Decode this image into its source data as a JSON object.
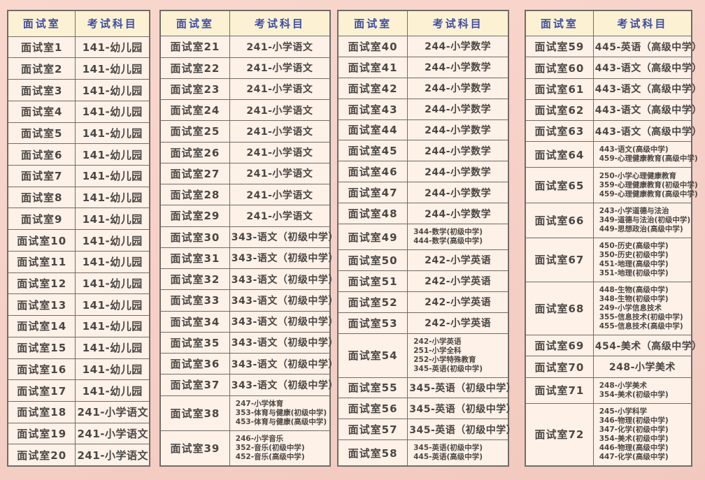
{
  "colors": {
    "page_bg_top": "#f9d7cd",
    "page_bg_bottom": "#f2c9bf",
    "table_bg": "#fdf1e8",
    "header_bg": "#fcf2d3",
    "header_text": "#3e4da3",
    "body_text": "#4b4744",
    "border": "#716c67"
  },
  "column_headers": {
    "room": "面试室",
    "subject": "考试科目"
  },
  "tables": [
    {
      "rows": [
        {
          "room": "面试室1",
          "subjects": [
            "141-幼儿园"
          ]
        },
        {
          "room": "面试室2",
          "subjects": [
            "141-幼儿园"
          ]
        },
        {
          "room": "面试室3",
          "subjects": [
            "141-幼儿园"
          ]
        },
        {
          "room": "面试室4",
          "subjects": [
            "141-幼儿园"
          ]
        },
        {
          "room": "面试室5",
          "subjects": [
            "141-幼儿园"
          ]
        },
        {
          "room": "面试室6",
          "subjects": [
            "141-幼儿园"
          ]
        },
        {
          "room": "面试室7",
          "subjects": [
            "141-幼儿园"
          ]
        },
        {
          "room": "面试室8",
          "subjects": [
            "141-幼儿园"
          ]
        },
        {
          "room": "面试室9",
          "subjects": [
            "141-幼儿园"
          ]
        },
        {
          "room": "面试室10",
          "subjects": [
            "141-幼儿园"
          ]
        },
        {
          "room": "面试室11",
          "subjects": [
            "141-幼儿园"
          ]
        },
        {
          "room": "面试室12",
          "subjects": [
            "141-幼儿园"
          ]
        },
        {
          "room": "面试室13",
          "subjects": [
            "141-幼儿园"
          ]
        },
        {
          "room": "面试室14",
          "subjects": [
            "141-幼儿园"
          ]
        },
        {
          "room": "面试室15",
          "subjects": [
            "141-幼儿园"
          ]
        },
        {
          "room": "面试室16",
          "subjects": [
            "141-幼儿园"
          ]
        },
        {
          "room": "面试室17",
          "subjects": [
            "141-幼儿园"
          ]
        },
        {
          "room": "面试室18",
          "subjects": [
            "241-小学语文"
          ]
        },
        {
          "room": "面试室19",
          "subjects": [
            "241-小学语文"
          ]
        },
        {
          "room": "面试室20",
          "subjects": [
            "241-小学语文"
          ]
        }
      ]
    },
    {
      "rows": [
        {
          "room": "面试室21",
          "subjects": [
            "241-小学语文"
          ]
        },
        {
          "room": "面试室22",
          "subjects": [
            "241-小学语文"
          ]
        },
        {
          "room": "面试室23",
          "subjects": [
            "241-小学语文"
          ]
        },
        {
          "room": "面试室24",
          "subjects": [
            "241-小学语文"
          ]
        },
        {
          "room": "面试室25",
          "subjects": [
            "241-小学语文"
          ]
        },
        {
          "room": "面试室26",
          "subjects": [
            "241-小学语文"
          ]
        },
        {
          "room": "面试室27",
          "subjects": [
            "241-小学语文"
          ]
        },
        {
          "room": "面试室28",
          "subjects": [
            "241-小学语文"
          ]
        },
        {
          "room": "面试室29",
          "subjects": [
            "241-小学语文"
          ]
        },
        {
          "room": "面试室30",
          "subjects": [
            "343-语文（初级中学）"
          ]
        },
        {
          "room": "面试室31",
          "subjects": [
            "343-语文（初级中学）"
          ]
        },
        {
          "room": "面试室32",
          "subjects": [
            "343-语文（初级中学）"
          ]
        },
        {
          "room": "面试室33",
          "subjects": [
            "343-语文（初级中学）"
          ]
        },
        {
          "room": "面试室34",
          "subjects": [
            "343-语文（初级中学）"
          ]
        },
        {
          "room": "面试室35",
          "subjects": [
            "343-语文（初级中学）"
          ]
        },
        {
          "room": "面试室36",
          "subjects": [
            "343-语文（初级中学）"
          ]
        },
        {
          "room": "面试室37",
          "subjects": [
            "343-语文（初级中学）"
          ]
        },
        {
          "room": "面试室38",
          "subjects": [
            "247-小学体育",
            "353-体育与健康(初级中学)",
            "453-体育与健康(高级中学)"
          ]
        },
        {
          "room": "面试室39",
          "subjects": [
            "246-小学音乐",
            "352-音乐(初级中学)",
            "452-音乐(高级中学)"
          ]
        }
      ]
    },
    {
      "rows": [
        {
          "room": "面试室40",
          "subjects": [
            "244-小学数学"
          ]
        },
        {
          "room": "面试室41",
          "subjects": [
            "244-小学数学"
          ]
        },
        {
          "room": "面试室42",
          "subjects": [
            "244-小学数学"
          ]
        },
        {
          "room": "面试室43",
          "subjects": [
            "244-小学数学"
          ]
        },
        {
          "room": "面试室44",
          "subjects": [
            "244-小学数学"
          ]
        },
        {
          "room": "面试室45",
          "subjects": [
            "244-小学数学"
          ]
        },
        {
          "room": "面试室46",
          "subjects": [
            "244-小学数学"
          ]
        },
        {
          "room": "面试室47",
          "subjects": [
            "244-小学数学"
          ]
        },
        {
          "room": "面试室48",
          "subjects": [
            "244-小学数学"
          ]
        },
        {
          "room": "面试室49",
          "subjects": [
            "344-数学(初级中学)",
            "444-数学(高级中学)"
          ]
        },
        {
          "room": "面试室50",
          "subjects": [
            "242-小学英语"
          ]
        },
        {
          "room": "面试室51",
          "subjects": [
            "242-小学英语"
          ]
        },
        {
          "room": "面试室52",
          "subjects": [
            "242-小学英语"
          ]
        },
        {
          "room": "面试室53",
          "subjects": [
            "242-小学英语"
          ]
        },
        {
          "room": "面试室54",
          "subjects": [
            "242-小学英语",
            "251-小学全科",
            "252-小学特殊教育",
            "345-英语(初级中学)"
          ]
        },
        {
          "room": "面试室55",
          "subjects": [
            "345-英语（初级中学）"
          ]
        },
        {
          "room": "面试室56",
          "subjects": [
            "345-英语（初级中学）"
          ]
        },
        {
          "room": "面试室57",
          "subjects": [
            "345-英语（初级中学）"
          ]
        },
        {
          "room": "面试室58",
          "subjects": [
            "345-英语(初级中学)",
            "445-英语(高级中学)"
          ]
        }
      ]
    },
    {
      "rows": [
        {
          "room": "面试室59",
          "subjects": [
            "445-英语（高级中学）"
          ]
        },
        {
          "room": "面试室60",
          "subjects": [
            "443-语文（高级中学）"
          ]
        },
        {
          "room": "面试室61",
          "subjects": [
            "443-语文（高级中学）"
          ]
        },
        {
          "room": "面试室62",
          "subjects": [
            "443-语文（高级中学）"
          ]
        },
        {
          "room": "面试室63",
          "subjects": [
            "443-语文（高级中学）"
          ]
        },
        {
          "room": "面试室64",
          "subjects": [
            "443-语文(高级中学)",
            "459-心理健康教育(高级中学)"
          ]
        },
        {
          "room": "面试室65",
          "subjects": [
            "250-小学心理健康教育",
            "359-心理健康教育(初级中学)",
            "459-心理健康教育(高级中学)"
          ]
        },
        {
          "room": "面试室66",
          "subjects": [
            "243-小学道德与法治",
            "349-道德与法治(初级中学)",
            "449-思想政治(高级中学)"
          ]
        },
        {
          "room": "面试室67",
          "subjects": [
            "450-历史(高级中学)",
            "350-历史(初级中学)",
            "451-地理(高级中学)",
            "351-地理(初级中学)"
          ]
        },
        {
          "room": "面试室68",
          "subjects": [
            "448-生物(高级中学)",
            "348-生物(初级中学)",
            "249-小学信息技术",
            "355-信息技术(初级中学)",
            "455-信息技术(高级中学)"
          ]
        },
        {
          "room": "面试室69",
          "subjects": [
            "454-美术（高级中学）"
          ]
        },
        {
          "room": "面试室70",
          "subjects": [
            "248-小学美术"
          ]
        },
        {
          "room": "面试室71",
          "subjects": [
            "248-小学美术",
            "354-美术(初级中学)"
          ]
        },
        {
          "room": "面试室72",
          "subjects": [
            "245-小学科学",
            "346-物理(初级中学)",
            "347-化学(初级中学)",
            "354-美术(初级中学)",
            "446-物理(高级中学)",
            "447-化学(高级中学)"
          ]
        }
      ]
    }
  ]
}
